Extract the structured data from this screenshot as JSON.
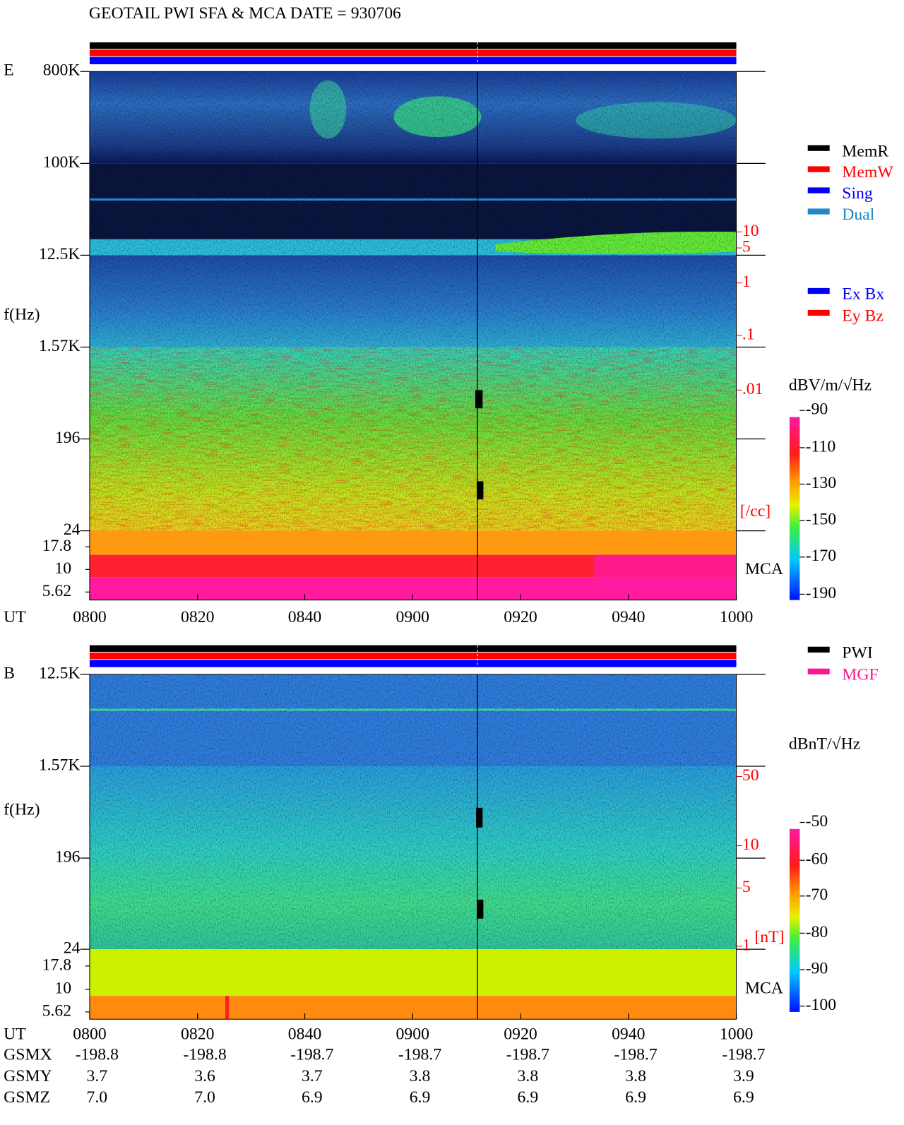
{
  "title": "GEOTAIL  PWI SFA & MCA   DATE = 930706",
  "panels": [
    {
      "label": "E",
      "y_axis_label": "f(Hz)",
      "freq_ticks": [
        "800K",
        "100K",
        "12.5K",
        "1.57K",
        "196",
        "24"
      ],
      "mca_ticks": [
        "17.8",
        "10",
        "5.62"
      ],
      "mca_label": "MCA",
      "right_ticks": [
        "10",
        "5",
        "1",
        ".1",
        ".01"
      ],
      "right_unit": "[/cc]",
      "colorbar_unit": "dBV/m/√Hz",
      "colorbar_ticks": [
        "-90",
        "-110",
        "-130",
        "-150",
        "-170",
        "-190"
      ],
      "time_label": "UT",
      "time_ticks": [
        "0800",
        "0820",
        "0840",
        "0900",
        "0920",
        "0940",
        "1000"
      ]
    },
    {
      "label": "B",
      "y_axis_label": "f(Hz)",
      "freq_ticks": [
        "12.5K",
        "1.57K",
        "196",
        "24"
      ],
      "mca_ticks": [
        "17.8",
        "10",
        "5.62"
      ],
      "mca_label": "MCA",
      "right_ticks": [
        "50",
        "10",
        "5",
        "1"
      ],
      "right_unit": "[nT]",
      "colorbar_unit": "dBnT/√Hz",
      "colorbar_ticks": [
        "-50",
        "-60",
        "-70",
        "-80",
        "-90",
        "-100"
      ],
      "time_label": "UT",
      "time_ticks": [
        "0800",
        "0820",
        "0840",
        "0900",
        "0920",
        "0940",
        "1000"
      ]
    }
  ],
  "legend_mode": [
    "MemR",
    "MemW",
    "Sing",
    "Dual"
  ],
  "legend_component": [
    "Ex Bx",
    "Ey Bz"
  ],
  "legend_b_source": [
    "PWI",
    "MGF"
  ],
  "orbit": [
    {
      "label": "GSMX",
      "values": [
        "-198.8",
        "-198.8",
        "-198.7",
        "-198.7",
        "-198.7",
        "-198.7",
        "-198.7"
      ]
    },
    {
      "label": "GSMY",
      "values": [
        "3.7",
        "3.6",
        "3.7",
        "3.8",
        "3.8",
        "3.8",
        "3.9"
      ]
    },
    {
      "label": "GSMZ",
      "values": [
        "7.0",
        "7.0",
        "6.9",
        "6.9",
        "6.9",
        "6.9",
        "6.9"
      ]
    }
  ]
}
